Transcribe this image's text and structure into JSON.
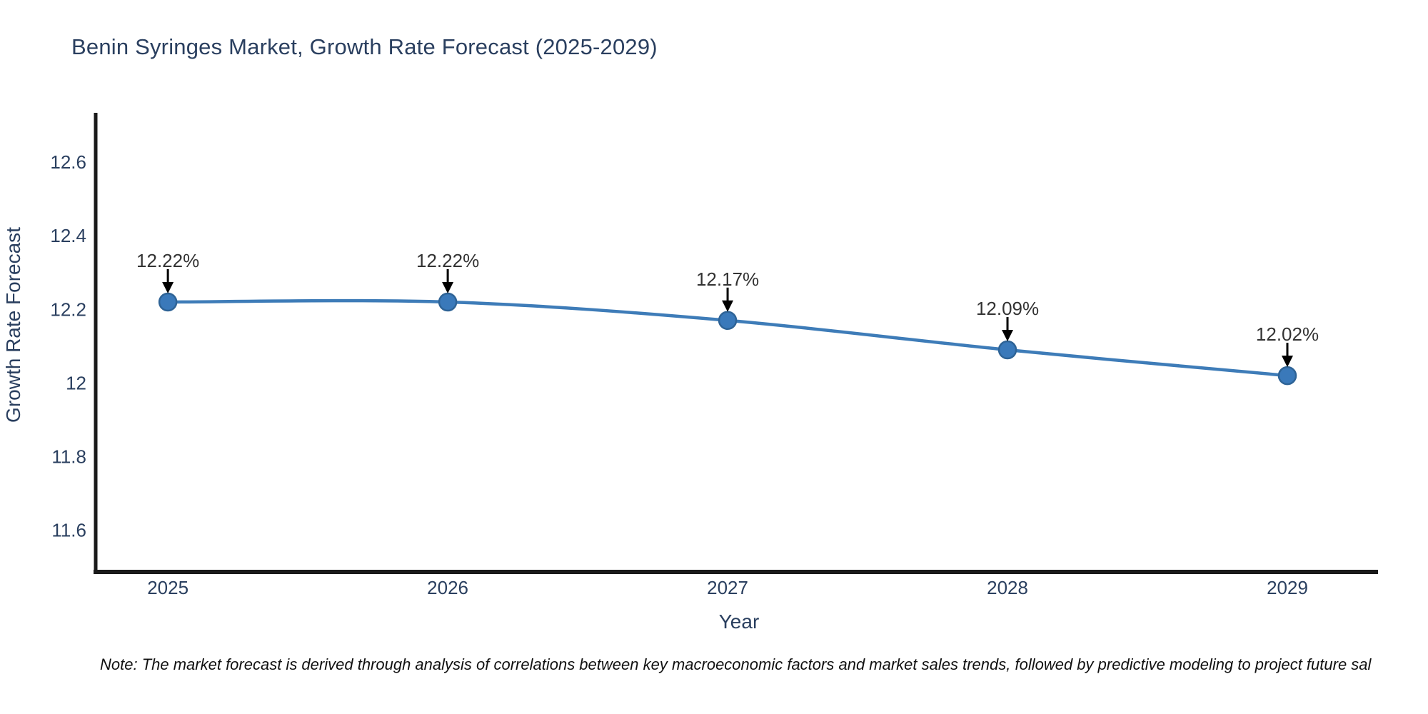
{
  "title": "Benin Syringes Market, Growth Rate Forecast (2025-2029)",
  "note": "Note: The market forecast is derived through analysis of correlations between key macroeconomic factors and market sales trends, followed by predictive modeling to project future sal",
  "chart_data": {
    "type": "line",
    "title": "Benin Syringes Market, Growth Rate Forecast (2025-2029)",
    "xlabel": "Year",
    "ylabel": "Growth Rate Forecast",
    "x": [
      2025,
      2026,
      2027,
      2028,
      2029
    ],
    "values": [
      12.22,
      12.22,
      12.17,
      12.09,
      12.02
    ],
    "point_labels": [
      "12.22%",
      "12.22%",
      "12.17%",
      "12.09%",
      "12.02%"
    ],
    "x_tick_labels": [
      "2025",
      "2026",
      "2027",
      "2028",
      "2029"
    ],
    "y_ticks": [
      11.6,
      11.8,
      12,
      12.2,
      12.4,
      12.6
    ],
    "y_tick_labels": [
      "11.6",
      "11.8",
      "12",
      "12.2",
      "12.4",
      "12.6"
    ],
    "xlim": [
      2024.742,
      2029.324
    ],
    "ylim": [
      11.487,
      12.73
    ],
    "grid": false,
    "legend": "none",
    "line_shape": "spline",
    "annotation_style": "down-arrow",
    "colors": {
      "line": "#3e7cb8",
      "marker_fill": "#3a79ba",
      "marker_edge": "#2e6396",
      "axis_line": "#1a1a1a",
      "tick_label": "#2a3f5f",
      "title_text": "#2a3f5f",
      "annotation_text": "#333333",
      "arrow": "#000000",
      "note_text": "#111111",
      "background": "#ffffff"
    }
  }
}
